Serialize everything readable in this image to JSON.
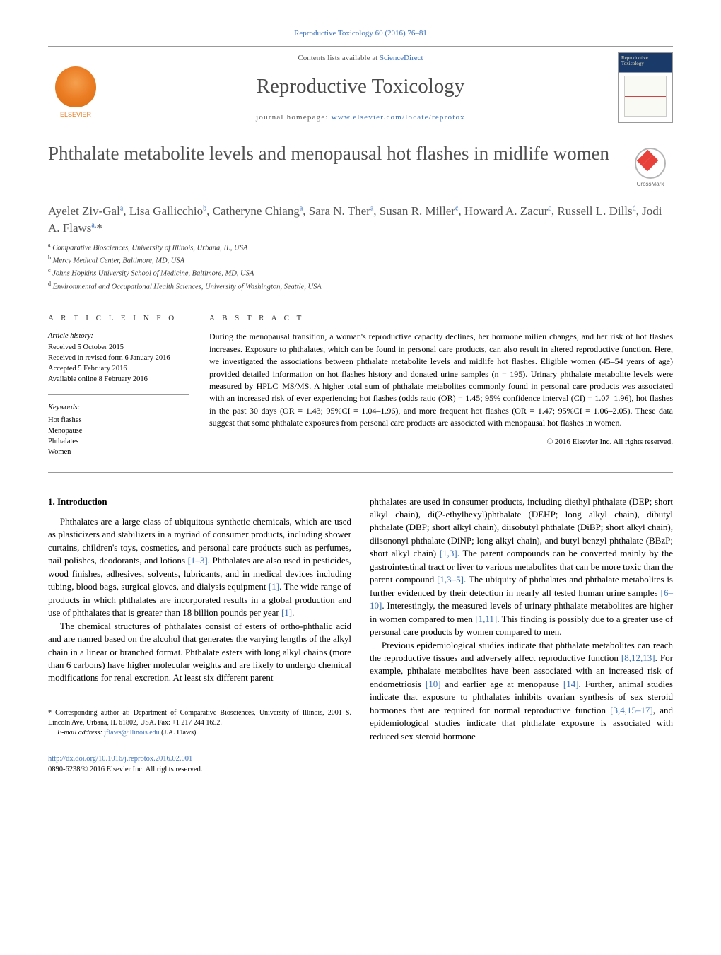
{
  "header_citation": "Reproductive Toxicology 60 (2016) 76–81",
  "contents_text": "Contents lists available at ",
  "contents_link": "ScienceDirect",
  "journal_name": "Reproductive Toxicology",
  "homepage_label": "journal homepage: ",
  "homepage_url": "www.elsevier.com/locate/reprotox",
  "elsevier_label": "ELSEVIER",
  "crossmark_label": "CrossMark",
  "title": "Phthalate metabolite levels and menopausal hot flashes in midlife women",
  "authors_html": "Ayelet Ziv-Gal<sup>a</sup>, Lisa Gallicchio<sup>b</sup>, Catheryne Chiang<sup>a</sup>, Sara N. Ther<sup>a</sup>, Susan R. Miller<sup>c</sup>, Howard A. Zacur<sup>c</sup>, Russell L. Dills<sup>d</sup>, Jodi A. Flaws<sup>a,</sup>*",
  "affiliations": [
    "Comparative Biosciences, University of Illinois, Urbana, IL, USA",
    "Mercy Medical Center, Baltimore, MD, USA",
    "Johns Hopkins University School of Medicine, Baltimore, MD, USA",
    "Environmental and Occupational Health Sciences, University of Washington, Seattle, USA"
  ],
  "aff_markers": [
    "a",
    "b",
    "c",
    "d"
  ],
  "article_info_head": "a r t i c l e   i n f o",
  "abstract_head": "a b s t r a c t",
  "history_label": "Article history:",
  "history": [
    "Received 5 October 2015",
    "Received in revised form 6 January 2016",
    "Accepted 5 February 2016",
    "Available online 8 February 2016"
  ],
  "keywords_label": "Keywords:",
  "keywords": [
    "Hot flashes",
    "Menopause",
    "Phthalates",
    "Women"
  ],
  "abstract": "During the menopausal transition, a woman's reproductive capacity declines, her hormone milieu changes, and her risk of hot flashes increases. Exposure to phthalates, which can be found in personal care products, can also result in altered reproductive function. Here, we investigated the associations between phthalate metabolite levels and midlife hot flashes. Eligible women (45–54 years of age) provided detailed information on hot flashes history and donated urine samples (n = 195). Urinary phthalate metabolite levels were measured by HPLC–MS/MS. A higher total sum of phthalate metabolites commonly found in personal care products was associated with an increased risk of ever experiencing hot flashes (odds ratio (OR) = 1.45; 95% confidence interval (CI) = 1.07–1.96), hot flashes in the past 30 days (OR = 1.43; 95%CI = 1.04–1.96), and more frequent hot flashes (OR = 1.47; 95%CI = 1.06–2.05). These data suggest that some phthalate exposures from personal care products are associated with menopausal hot flashes in women.",
  "copyright_line": "© 2016 Elsevier Inc. All rights reserved.",
  "intro_head": "1.  Introduction",
  "para1": "Phthalates are a large class of ubiquitous synthetic chemicals, which are used as plasticizers and stabilizers in a myriad of consumer products, including shower curtains, children's toys, cosmetics, and personal care products such as perfumes, nail polishes, deodorants, and lotions [1–3]. Phthalates are also used in pesticides, wood finishes, adhesives, solvents, lubricants, and in medical devices including tubing, blood bags, surgical gloves, and dialysis equipment [1]. The wide range of products in which phthalates are incorporated results in a global production and use of phthalates that is greater than 18 billion pounds per year [1].",
  "para2": "The chemical structures of phthalates consist of esters of ortho-phthalic acid and are named based on the alcohol that generates the varying lengths of the alkyl chain in a linear or branched format. Phthalate esters with long alkyl chains (more than 6 carbons) have higher molecular weights and are likely to undergo chemical modifications for renal excretion. At least six different parent",
  "para3": "phthalates are used in consumer products, including diethyl phthalate (DEP; short alkyl chain), di(2-ethylhexyl)phthalate (DEHP; long alkyl chain), dibutyl phthalate (DBP; short alkyl chain), diisobutyl phthalate (DiBP; short alkyl chain), diisononyl phthalate (DiNP; long alkyl chain), and butyl benzyl phthalate (BBzP; short alkyl chain) [1,3]. The parent compounds can be converted mainly by the gastrointestinal tract or liver to various metabolites that can be more toxic than the parent compound [1,3–5]. The ubiquity of phthalates and phthalate metabolites is further evidenced by their detection in nearly all tested human urine samples [6–10]. Interestingly, the measured levels of urinary phthalate metabolites are higher in women compared to men [1,11]. This finding is possibly due to a greater use of personal care products by women compared to men.",
  "para4": "Previous epidemiological studies indicate that phthalate metabolites can reach the reproductive tissues and adversely affect reproductive function [8,12,13]. For example, phthalate metabolites have been associated with an increased risk of endometriosis [10] and earlier age at menopause [14]. Further, animal studies indicate that exposure to phthalates inhibits ovarian synthesis of sex steroid hormones that are required for normal reproductive function [3,4,15–17], and epidemiological studies indicate that phthalate exposure is associated with reduced sex steroid hormone",
  "refs": {
    "r1_3": "[1–3]",
    "r1": "[1]",
    "r1c3": "[1,3]",
    "r1_3_5": "[1,3–5]",
    "r6_10": "[6–10]",
    "r1_11": "[1,11]",
    "r8_12_13": "[8,12,13]",
    "r10": "[10]",
    "r14": "[14]",
    "r3_4_15_17": "[3,4,15–17]"
  },
  "corr_text": "* Corresponding author at: Department of Comparative Biosciences, University of Illinois, 2001 S. Lincoln Ave, Urbana, IL 61802, USA. Fax: +1 217 244 1652.",
  "email_label": "E-mail address: ",
  "email": "jflaws@illinois.edu",
  "email_suffix": " (J.A. Flaws).",
  "doi": "http://dx.doi.org/10.1016/j.reprotox.2016.02.001",
  "issn_line": "0890-6238/© 2016 Elsevier Inc. All rights reserved.",
  "colors": {
    "link": "#3a6fb7",
    "text_gray": "#525252",
    "orange": "#eb7d24"
  }
}
